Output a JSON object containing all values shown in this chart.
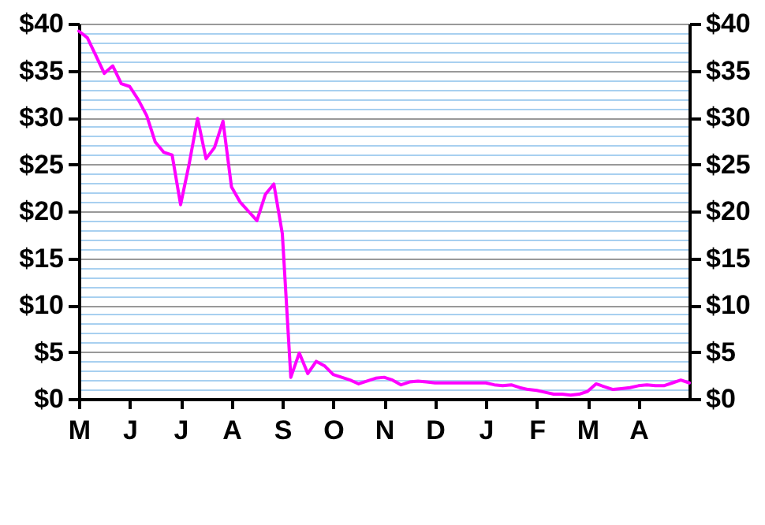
{
  "chart_data": {
    "type": "line",
    "categories": [
      "M",
      null,
      null,
      null,
      null,
      null,
      "J",
      null,
      null,
      null,
      null,
      null,
      "J",
      null,
      null,
      null,
      null,
      null,
      "A",
      null,
      null,
      null,
      null,
      null,
      "S",
      null,
      null,
      null,
      null,
      null,
      "O",
      null,
      null,
      null,
      null,
      null,
      "N",
      null,
      null,
      null,
      null,
      null,
      "D",
      null,
      null,
      null,
      null,
      null,
      "J",
      null,
      null,
      null,
      null,
      null,
      "F",
      null,
      null,
      null,
      null,
      null,
      "M",
      null,
      null,
      null,
      null,
      null,
      "A",
      null,
      null,
      null,
      null,
      null,
      null
    ],
    "series": [
      {
        "color": "#ff00ff",
        "values": [
          39.2,
          38.5,
          36.6,
          34.7,
          35.5,
          33.6,
          33.3,
          31.9,
          30.2,
          27.4,
          26.3,
          26,
          20.7,
          25,
          29.9,
          25.6,
          26.8,
          29.6,
          22.6,
          21,
          20,
          19,
          21.8,
          22.9,
          17.6,
          2.3,
          4.9,
          2.7,
          4,
          3.5,
          2.6,
          2.3,
          2,
          1.6,
          1.9,
          2.2,
          2.3,
          2,
          1.5,
          1.8,
          1.9,
          1.8,
          1.7,
          1.7,
          1.7,
          1.7,
          1.7,
          1.7,
          1.7,
          1.5,
          1.4,
          1.5,
          1.2,
          1,
          0.9,
          0.7,
          0.5,
          0.5,
          0.4,
          0.5,
          0.8,
          1.6,
          1.3,
          1,
          1.1,
          1.2,
          1.4,
          1.5,
          1.4,
          1.4,
          1.7,
          2,
          1.7
        ]
      }
    ],
    "ylim": [
      0,
      40
    ],
    "yticks": [
      {
        "value": 0,
        "label": "$0"
      },
      {
        "value": 1,
        "label": null
      },
      {
        "value": 2,
        "label": null
      },
      {
        "value": 3,
        "label": null
      },
      {
        "value": 4,
        "label": null
      },
      {
        "value": 5,
        "label": "$5"
      },
      {
        "value": 6,
        "label": null
      },
      {
        "value": 7,
        "label": null
      },
      {
        "value": 8,
        "label": null
      },
      {
        "value": 9,
        "label": null
      },
      {
        "value": 10,
        "label": "$10"
      },
      {
        "value": 11,
        "label": null
      },
      {
        "value": 12,
        "label": null
      },
      {
        "value": 13,
        "label": null
      },
      {
        "value": 14,
        "label": null
      },
      {
        "value": 15,
        "label": "$15"
      },
      {
        "value": 16,
        "label": null
      },
      {
        "value": 17,
        "label": null
      },
      {
        "value": 18,
        "label": null
      },
      {
        "value": 19,
        "label": null
      },
      {
        "value": 20,
        "label": "$20"
      },
      {
        "value": 21,
        "label": null
      },
      {
        "value": 22,
        "label": null
      },
      {
        "value": 23,
        "label": null
      },
      {
        "value": 24,
        "label": null
      },
      {
        "value": 25,
        "label": "$25"
      },
      {
        "value": 26,
        "label": null
      },
      {
        "value": 27,
        "label": null
      },
      {
        "value": 28,
        "label": null
      },
      {
        "value": 29,
        "label": null
      },
      {
        "value": 30,
        "label": "$30"
      },
      {
        "value": 31,
        "label": null
      },
      {
        "value": 32,
        "label": null
      },
      {
        "value": 33,
        "label": null
      },
      {
        "value": 34,
        "label": null
      },
      {
        "value": 35,
        "label": "$35"
      },
      {
        "value": 36,
        "label": null
      },
      {
        "value": 37,
        "label": null
      },
      {
        "value": 38,
        "label": null
      },
      {
        "value": 39,
        "label": null
      },
      {
        "value": 40,
        "label": "$40"
      }
    ],
    "y2lim": [
      0,
      40
    ],
    "y2ticks": [
      {
        "value": 0,
        "label": "$0"
      },
      {
        "value": 5,
        "label": "$5"
      },
      {
        "value": 10,
        "label": "$10"
      },
      {
        "value": 15,
        "label": "$15"
      },
      {
        "value": 20,
        "label": "$20"
      },
      {
        "value": 25,
        "label": "$25"
      },
      {
        "value": 30,
        "label": "$30"
      },
      {
        "value": 35,
        "label": "$35"
      },
      {
        "value": 40,
        "label": "$40"
      }
    ],
    "grid": "y",
    "marker": "none",
    "line_style": "solid"
  }
}
